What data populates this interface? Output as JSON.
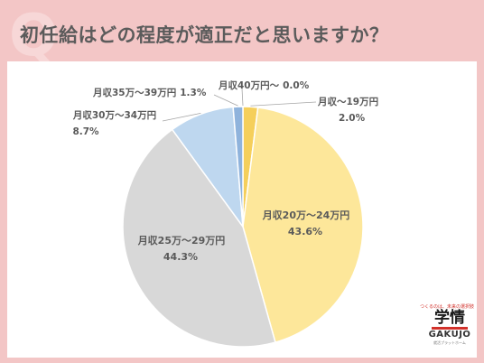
{
  "header": {
    "title": "初任給はどの程度が適正だと思いますか？",
    "q_letter": "Q"
  },
  "logo": {
    "tagline": "つくるのは、未来の選択肢",
    "name": "学情",
    "name_en": "GAKUJO",
    "foot": "就活プラットホーム"
  },
  "colors": {
    "background": "#f3c6c6",
    "panel": "#ffffff",
    "brand_red": "#d2312b"
  },
  "chart_data": {
    "type": "pie",
    "title": "",
    "start_angle_deg": 0,
    "direction": "clockwise",
    "slices": [
      {
        "label": "月収～19万円",
        "pct_label": "2.0%",
        "value": 2.0,
        "color": "#f5cf5b"
      },
      {
        "label": "月収20万～24万円",
        "pct_label": "43.6%",
        "value": 43.6,
        "color": "#fde79a"
      },
      {
        "label": "月収25万～29万円",
        "pct_label": "44.3%",
        "value": 44.3,
        "color": "#d8d8d8"
      },
      {
        "label": "月収30万～34万円",
        "pct_label": "8.7%",
        "value": 8.7,
        "color": "#bed7ef"
      },
      {
        "label": "月収35万～39万円",
        "pct_label": "1.3%",
        "value": 1.3,
        "color": "#8fb3dc"
      },
      {
        "label": "月収40万円～",
        "pct_label": "0.0%",
        "value": 0.0,
        "color": "#4a78b5"
      }
    ]
  }
}
